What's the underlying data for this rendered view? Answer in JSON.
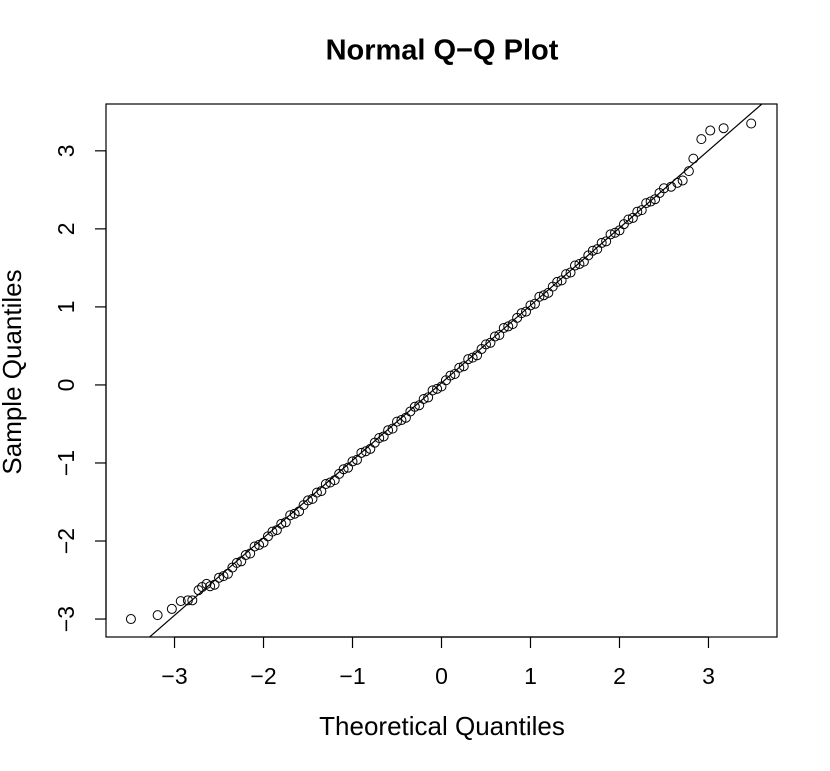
{
  "chart_data": {
    "type": "scatter",
    "title": "Normal Q−Q Plot",
    "x_label": "Theoretical Quantiles",
    "y_label": "Sample Quantiles",
    "xlim": [
      -3.77,
      3.77
    ],
    "ylim": [
      -3.23,
      3.6
    ],
    "xticks": [
      {
        "value": -3,
        "label": "−3"
      },
      {
        "value": -2,
        "label": "−2"
      },
      {
        "value": -1,
        "label": "−1"
      },
      0,
      1,
      2,
      3
    ],
    "yticks": [
      {
        "value": -3,
        "label": "−3"
      },
      {
        "value": -2,
        "label": "−2"
      },
      {
        "value": -1,
        "label": "−1"
      },
      0,
      1,
      2,
      3
    ],
    "color": "#000000",
    "x": [
      -3.49,
      -3.19,
      -3.03,
      -2.93,
      -2.85,
      -2.8,
      -2.73,
      -2.69,
      -2.64,
      -2.6,
      -2.55,
      -2.5,
      -2.45,
      -2.4,
      -2.35,
      -2.3,
      -2.25,
      -2.2,
      -2.15,
      -2.1,
      -2.05,
      -2.0,
      -1.95,
      -1.9,
      -1.85,
      -1.8,
      -1.75,
      -1.7,
      -1.65,
      -1.6,
      -1.55,
      -1.5,
      -1.45,
      -1.4,
      -1.35,
      -1.3,
      -1.25,
      -1.2,
      -1.15,
      -1.1,
      -1.05,
      -1.0,
      -0.95,
      -0.9,
      -0.85,
      -0.8,
      -0.75,
      -0.7,
      -0.65,
      -0.6,
      -0.55,
      -0.5,
      -0.45,
      -0.4,
      -0.35,
      -0.3,
      -0.25,
      -0.2,
      -0.15,
      -0.1,
      -0.05,
      0.0,
      0.05,
      0.1,
      0.15,
      0.2,
      0.25,
      0.3,
      0.35,
      0.4,
      0.45,
      0.5,
      0.55,
      0.6,
      0.65,
      0.7,
      0.75,
      0.8,
      0.85,
      0.9,
      0.95,
      1.0,
      1.05,
      1.1,
      1.15,
      1.2,
      1.25,
      1.3,
      1.35,
      1.4,
      1.45,
      1.5,
      1.55,
      1.6,
      1.65,
      1.7,
      1.75,
      1.8,
      1.85,
      1.9,
      1.95,
      2.0,
      2.05,
      2.1,
      2.15,
      2.2,
      2.25,
      2.3,
      2.35,
      2.4,
      2.45,
      2.5,
      2.58,
      2.65,
      2.71,
      2.78,
      2.83,
      2.92,
      3.02,
      3.17,
      3.48
    ],
    "y": [
      -3.0,
      -2.95,
      -2.87,
      -2.77,
      -2.76,
      -2.76,
      -2.63,
      -2.59,
      -2.55,
      -2.58,
      -2.56,
      -2.47,
      -2.45,
      -2.42,
      -2.34,
      -2.28,
      -2.26,
      -2.18,
      -2.16,
      -2.07,
      -2.05,
      -2.02,
      -1.94,
      -1.88,
      -1.86,
      -1.78,
      -1.76,
      -1.67,
      -1.65,
      -1.62,
      -1.54,
      -1.48,
      -1.46,
      -1.38,
      -1.36,
      -1.27,
      -1.25,
      -1.22,
      -1.14,
      -1.08,
      -1.06,
      -0.98,
      -0.96,
      -0.87,
      -0.85,
      -0.82,
      -0.74,
      -0.68,
      -0.66,
      -0.58,
      -0.56,
      -0.47,
      -0.45,
      -0.42,
      -0.34,
      -0.28,
      -0.26,
      -0.18,
      -0.16,
      -0.07,
      -0.05,
      -0.02,
      0.06,
      0.12,
      0.14,
      0.22,
      0.24,
      0.33,
      0.35,
      0.38,
      0.46,
      0.52,
      0.54,
      0.62,
      0.64,
      0.73,
      0.75,
      0.78,
      0.86,
      0.92,
      0.94,
      1.02,
      1.04,
      1.13,
      1.15,
      1.18,
      1.26,
      1.32,
      1.34,
      1.42,
      1.44,
      1.53,
      1.55,
      1.58,
      1.66,
      1.72,
      1.74,
      1.82,
      1.84,
      1.93,
      1.95,
      1.98,
      2.06,
      2.12,
      2.14,
      2.22,
      2.24,
      2.33,
      2.35,
      2.38,
      2.46,
      2.52,
      2.54,
      2.59,
      2.62,
      2.74,
      2.9,
      3.15,
      3.26,
      3.29,
      3.35
    ],
    "reference_line": {
      "x": [
        -3.28,
        3.6
      ],
      "y": [
        -3.23,
        3.6
      ]
    }
  }
}
